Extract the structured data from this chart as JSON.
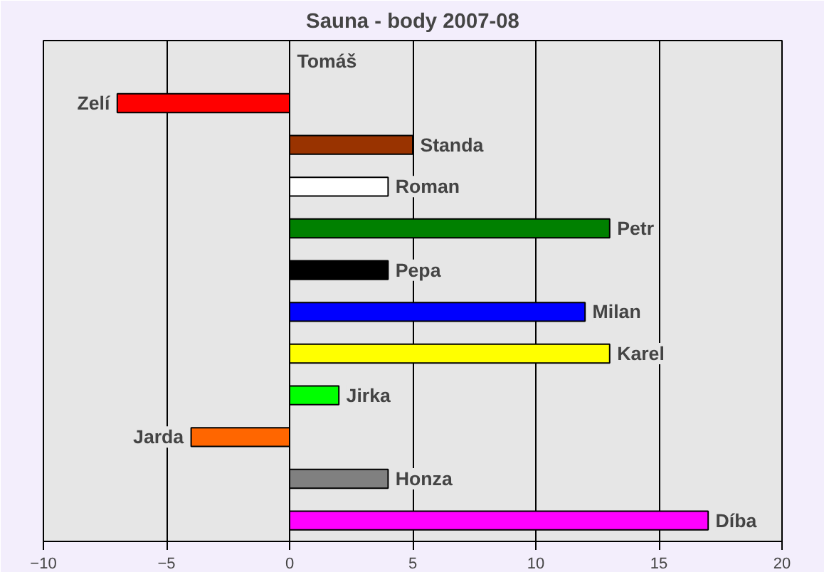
{
  "chart_data": {
    "type": "bar",
    "orientation": "horizontal",
    "title": "Sauna - body 2007-08",
    "categories": [
      "Tomáš",
      "Zelí",
      "Standa",
      "Roman",
      "Petr",
      "Pepa",
      "Milan",
      "Karel",
      "Jirka",
      "Jarda",
      "Honza",
      "Díba"
    ],
    "values": [
      0,
      -7,
      5,
      4,
      13,
      4,
      12,
      13,
      2,
      -4,
      4,
      17
    ],
    "colors": [
      "#000000",
      "#ff0000",
      "#993300",
      "#ffffff",
      "#008000",
      "#000000",
      "#0000ff",
      "#ffff00",
      "#00ff00",
      "#ff6600",
      "#808080",
      "#ff00ff"
    ],
    "xlim": [
      -10,
      20
    ],
    "xticks": [
      -10,
      -5,
      0,
      5,
      10,
      15,
      20
    ],
    "grid": "x",
    "tick_labels": "x"
  }
}
